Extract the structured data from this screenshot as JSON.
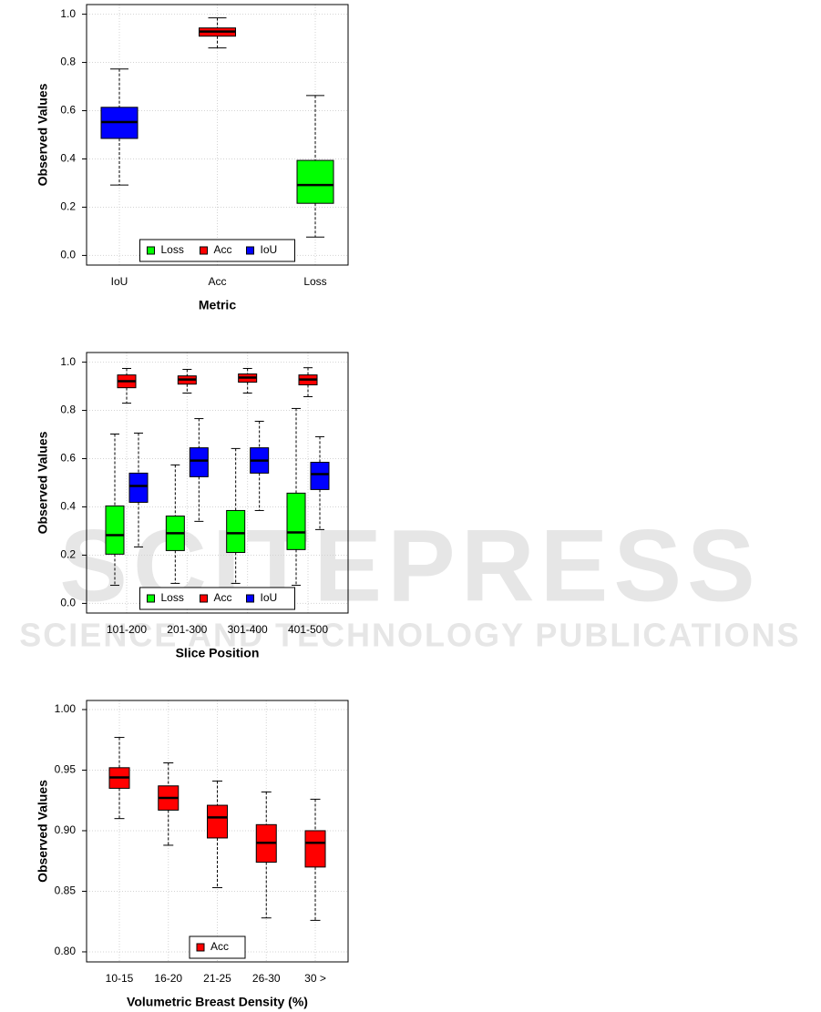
{
  "watermark": {
    "title": "SCITEPRESS",
    "subtitle": "SCIENCE AND TECHNOLOGY PUBLICATIONS"
  },
  "chart_data": [
    {
      "type": "box",
      "x_label": "Metric",
      "y_label": "Observed Values",
      "categories": [
        "IoU",
        "Acc",
        "Loss"
      ],
      "ylim": [
        -0.04,
        1.04
      ],
      "yticks": [
        {
          "value": 0,
          "label": "0.0"
        },
        {
          "value": 0.2,
          "label": "0.2"
        },
        {
          "value": 0.4,
          "label": "0.4"
        },
        {
          "value": 0.6,
          "label": "0.6"
        },
        {
          "value": 0.8,
          "label": "0.8"
        },
        {
          "value": 1,
          "label": "1.0"
        }
      ],
      "grid": true,
      "legend": "bottom",
      "series": [
        {
          "name": "Loss",
          "color": "#00ff00",
          "values": [
            null,
            null,
            {
              "min": 0.076,
              "q1": 0.216,
              "median": 0.292,
              "q3": 0.394,
              "max": 0.663
            }
          ]
        },
        {
          "name": "Acc",
          "color": "#ff0000",
          "values": [
            null,
            {
              "min": 0.86,
              "q1": 0.909,
              "median": 0.928,
              "q3": 0.943,
              "max": 0.985
            },
            null
          ]
        },
        {
          "name": "IoU",
          "color": "#0000ff",
          "values": [
            {
              "min": 0.292,
              "q1": 0.485,
              "median": 0.553,
              "q3": 0.614,
              "max": 0.773
            },
            null,
            null
          ]
        }
      ]
    },
    {
      "type": "box",
      "x_label": "Slice Position",
      "y_label": "Observed Values",
      "categories": [
        "101-200",
        "201-300",
        "301-400",
        "401-500"
      ],
      "ylim": [
        -0.04,
        1.04
      ],
      "yticks": [
        {
          "value": 0,
          "label": "0.0"
        },
        {
          "value": 0.2,
          "label": "0.2"
        },
        {
          "value": 0.4,
          "label": "0.4"
        },
        {
          "value": 0.6,
          "label": "0.6"
        },
        {
          "value": 0.8,
          "label": "0.8"
        },
        {
          "value": 1,
          "label": "1.0"
        }
      ],
      "grid": true,
      "legend": "bottom",
      "series": [
        {
          "name": "Loss",
          "color": "#00ff00",
          "values": [
            {
              "min": 0.075,
              "q1": 0.204,
              "median": 0.283,
              "q3": 0.404,
              "max": 0.702
            },
            {
              "min": 0.083,
              "q1": 0.219,
              "median": 0.291,
              "q3": 0.362,
              "max": 0.574
            },
            {
              "min": 0.083,
              "q1": 0.211,
              "median": 0.291,
              "q3": 0.385,
              "max": 0.642
            },
            {
              "min": 0.075,
              "q1": 0.223,
              "median": 0.294,
              "q3": 0.457,
              "max": 0.808
            }
          ]
        },
        {
          "name": "Acc",
          "color": "#ff0000",
          "values": [
            {
              "min": 0.83,
              "q1": 0.894,
              "median": 0.921,
              "q3": 0.947,
              "max": 0.974
            },
            {
              "min": 0.872,
              "q1": 0.909,
              "median": 0.928,
              "q3": 0.943,
              "max": 0.97
            },
            {
              "min": 0.872,
              "q1": 0.917,
              "median": 0.936,
              "q3": 0.951,
              "max": 0.974
            },
            {
              "min": 0.857,
              "q1": 0.906,
              "median": 0.928,
              "q3": 0.947,
              "max": 0.977
            }
          ]
        },
        {
          "name": "IoU",
          "color": "#0000ff",
          "values": [
            {
              "min": 0.234,
              "q1": 0.419,
              "median": 0.487,
              "q3": 0.54,
              "max": 0.706
            },
            {
              "min": 0.34,
              "q1": 0.525,
              "median": 0.592,
              "q3": 0.645,
              "max": 0.766
            },
            {
              "min": 0.385,
              "q1": 0.54,
              "median": 0.592,
              "q3": 0.645,
              "max": 0.755
            },
            {
              "min": 0.306,
              "q1": 0.472,
              "median": 0.536,
              "q3": 0.585,
              "max": 0.691
            }
          ]
        }
      ]
    },
    {
      "type": "box",
      "x_label": "Volumetric Breast Density (%)",
      "y_label": "Observed Values",
      "categories": [
        "10-15",
        "16-20",
        "21-25",
        "26-30",
        "30 >"
      ],
      "ylim": [
        0.7917,
        1.0075
      ],
      "yticks": [
        {
          "value": 0.8,
          "label": "0.80"
        },
        {
          "value": 0.85,
          "label": "0.85"
        },
        {
          "value": 0.9,
          "label": "0.90"
        },
        {
          "value": 0.95,
          "label": "0.95"
        },
        {
          "value": 1,
          "label": "1.00"
        }
      ],
      "grid": true,
      "legend": "bottom",
      "series": [
        {
          "name": "Acc",
          "color": "#ff0000",
          "values": [
            {
              "min": 0.91,
              "q1": 0.935,
              "median": 0.944,
              "q3": 0.952,
              "max": 0.977
            },
            {
              "min": 0.888,
              "q1": 0.917,
              "median": 0.927,
              "q3": 0.937,
              "max": 0.956
            },
            {
              "min": 0.853,
              "q1": 0.894,
              "median": 0.911,
              "q3": 0.921,
              "max": 0.941
            },
            {
              "min": 0.828,
              "q1": 0.874,
              "median": 0.89,
              "q3": 0.905,
              "max": 0.932
            },
            {
              "min": 0.826,
              "q1": 0.87,
              "median": 0.89,
              "q3": 0.9,
              "max": 0.926
            }
          ]
        }
      ]
    }
  ]
}
